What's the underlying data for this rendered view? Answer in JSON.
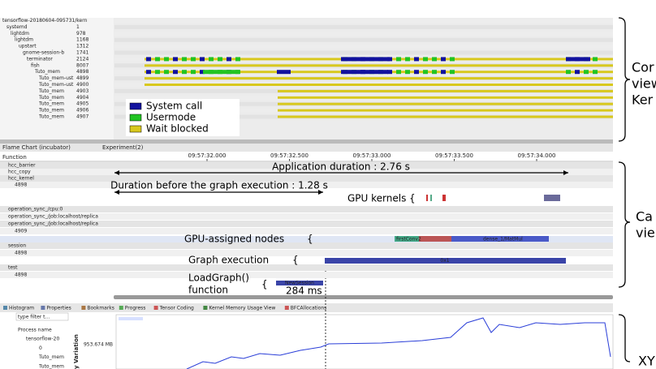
{
  "control_flow": {
    "rows": [
      {
        "name": "tensorflow-20180604-095731/kern"
      },
      {
        "name": "systemd",
        "tid": "1"
      },
      {
        "name": "lightdm",
        "tid": "978"
      },
      {
        "name": "lightdm",
        "tid": "1168"
      },
      {
        "name": "upstart",
        "tid": "1312"
      },
      {
        "name": "gnome-session-b",
        "tid": "1741"
      },
      {
        "name": "terminator",
        "tid": "2124"
      },
      {
        "name": "fish",
        "tid": "8007"
      },
      {
        "name": "Tuto_mem",
        "tid": "4898"
      },
      {
        "name": "Tuto_mem-ust",
        "tid": "4899"
      },
      {
        "name": "Tuto_mem-ust",
        "tid": "4900"
      },
      {
        "name": "Tuto_mem",
        "tid": "4903"
      },
      {
        "name": "Tuto_mem",
        "tid": "4904"
      },
      {
        "name": "Tuto_mem",
        "tid": "4905"
      },
      {
        "name": "Tuto_mem",
        "tid": "4906"
      },
      {
        "name": "Tuto_mem",
        "tid": "4907"
      }
    ],
    "legend": [
      {
        "label": "System call",
        "color": "#12129e"
      },
      {
        "label": "Usermode",
        "color": "#22c422"
      },
      {
        "label": "Wait blocked",
        "color": "#d8c81e"
      }
    ]
  },
  "flame_chart": {
    "tabs": [
      "Flame Chart (incubator)",
      "Experiment(2)"
    ],
    "column_header": "Function",
    "time_ticks": [
      "09:57:32.000",
      "09:57:32.500",
      "09:57:33.000",
      "09:57:33.500",
      "09:57:34.000"
    ],
    "rows": [
      "hcc_barrier",
      "hcc_copy",
      "hcc_kernel",
      "4898",
      "operation_sync_/cpu:0",
      "operation_sync_/job:localhost/replica",
      "operation_sync_/job:localhost/replica",
      "4909",
      "session",
      "4898",
      "test",
      "4898"
    ],
    "annotations": {
      "app_duration": "Application duration : 2.76 s",
      "before_graph": "Duration before the graph execution : 1.28 s",
      "gpu_kernels": "GPU kernels",
      "gpu_nodes": "GPU-assigned nodes",
      "graph_exec": "Graph execution",
      "load_graph_1": "LoadGraph()",
      "load_graph_2": "function",
      "load_time": "284 ms"
    },
    "bar_labels": [
      "firstConv2",
      "dense_1/MatMul",
      "0x1",
      "NewSession"
    ]
  },
  "bottom_panel": {
    "tabs": [
      "Histogram",
      "Properties",
      "Bookmarks",
      "Progress",
      "Tensor Coding",
      "Kernel Memory Usage View",
      "BFCAllocations"
    ],
    "filter": "type filter t...",
    "column_header": "Process name",
    "tree": [
      "tensorflow-20",
      "0",
      "Tuto_mem",
      "Tuto_mem"
    ],
    "y_axis_title": "y Variation",
    "y_tick": "953.674 MB"
  },
  "side_labels": {
    "control": [
      "Cor",
      "view",
      "Ker"
    ],
    "call": [
      "Ca",
      "vie"
    ],
    "xy": [
      "XY"
    ]
  }
}
